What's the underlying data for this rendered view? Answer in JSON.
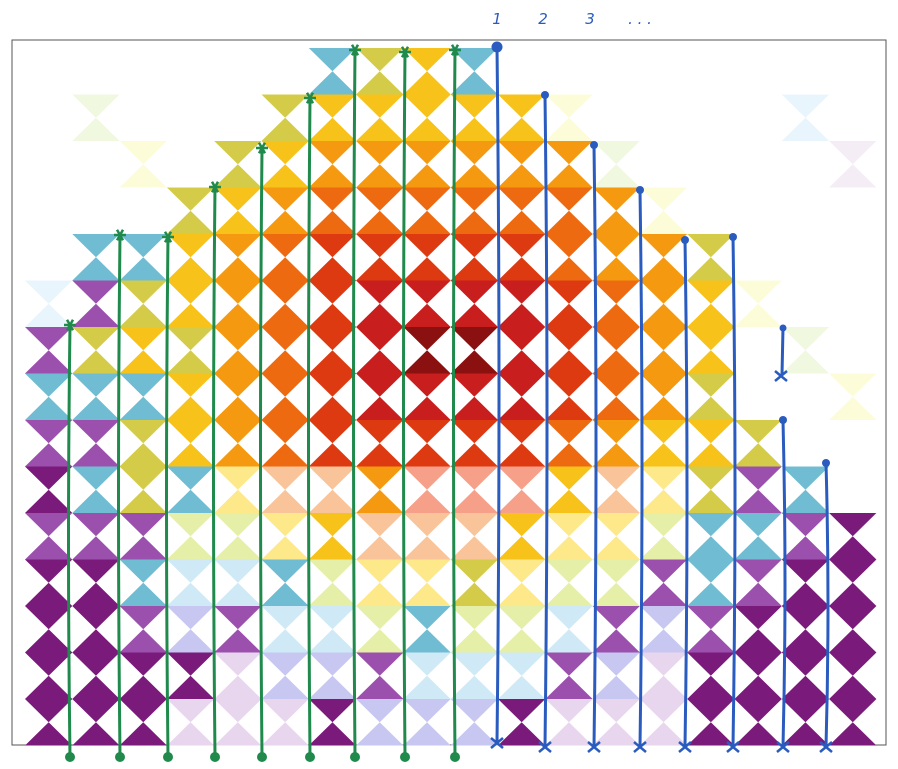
{
  "labels": [
    "1",
    "2",
    "3",
    ". . ."
  ]
}
